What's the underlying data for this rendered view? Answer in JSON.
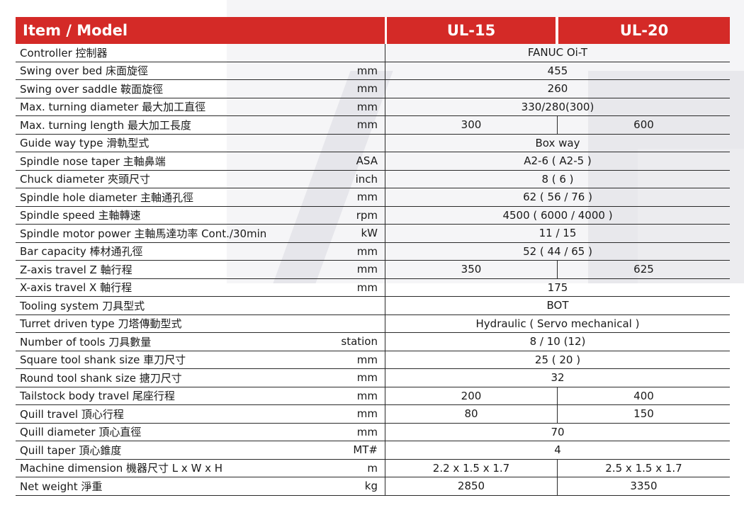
{
  "header": {
    "item_label": "Item / Model",
    "model1": "UL-15",
    "model2": "UL-20"
  },
  "rows": [
    {
      "label": "Controller 控制器",
      "unit": "",
      "value": "FANUC Oi-T"
    },
    {
      "label": "Swing over bed 床面旋徑",
      "unit": "mm",
      "value": "455"
    },
    {
      "label": "Swing over saddle 鞍面旋徑",
      "unit": "mm",
      "value": "260"
    },
    {
      "label": "Max. turning diameter 最大加工直徑",
      "unit": "mm",
      "value": "330/280(300)"
    },
    {
      "label": "Max. turning length 最大加工長度",
      "unit": "mm",
      "v1": "300",
      "v2": "600"
    },
    {
      "label": "Guide way type 滑軌型式",
      "unit": "",
      "value": "Box way"
    },
    {
      "label": "Spindle nose taper 主軸鼻端",
      "unit": "ASA",
      "value": "A2-6 ( A2-5 )"
    },
    {
      "label": "Chuck diameter 夾頭尺寸",
      "unit": "inch",
      "value": "8 ( 6 )"
    },
    {
      "label": "Spindle hole diameter 主軸通孔徑",
      "unit": "mm",
      "value": "62 ( 56 / 76 )"
    },
    {
      "label": "Spindle speed 主軸轉速",
      "unit": "rpm",
      "value": "4500 ( 6000 / 4000 )"
    },
    {
      "label": "Spindle motor power  主軸馬達功率 Cont./30min",
      "unit": "kW",
      "value": "11 / 15"
    },
    {
      "label": "Bar capacity 棒材通孔徑",
      "unit": "mm",
      "value": "52 ( 44 / 65 )"
    },
    {
      "label": "Z-axis travel Z 軸行程",
      "unit": "mm",
      "v1": "350",
      "v2": "625"
    },
    {
      "label": "X-axis travel X 軸行程",
      "unit": "mm",
      "value": "175"
    },
    {
      "label": "Tooling system 刀具型式",
      "unit": "",
      "value": "BOT"
    },
    {
      "label": "Turret driven type 刀塔傳動型式",
      "unit": "",
      "value": "Hydraulic ( Servo mechanical )"
    },
    {
      "label": "Number of tools 刀具數量",
      "unit": "station",
      "value": "8 / 10 (12)"
    },
    {
      "label": "Square tool shank size 車刀尺寸",
      "unit": "mm",
      "value": "25 ( 20 )"
    },
    {
      "label": "Round tool shank size 搪刀尺寸",
      "unit": "mm",
      "value": "32"
    },
    {
      "label": "Tailstock body travel 尾座行程",
      "unit": "mm",
      "v1": "200",
      "v2": "400"
    },
    {
      "label": "Quill travel 頂心行程",
      "unit": "mm",
      "v1": "80",
      "v2": "150"
    },
    {
      "label": "Quill diameter 頂心直徑",
      "unit": "mm",
      "value": "70"
    },
    {
      "label": "Quill taper 頂心錐度",
      "unit": "MT#",
      "value": "4"
    },
    {
      "label": "Machine dimension 機器尺寸 L x W x H",
      "unit": "m",
      "v1": "2.2 x 1.5 x 1.7",
      "v2": "2.5 x 1.5 x 1.7"
    },
    {
      "label": "Net weight 淨重",
      "unit": "kg",
      "v1": "2850",
      "v2": "3350"
    }
  ]
}
